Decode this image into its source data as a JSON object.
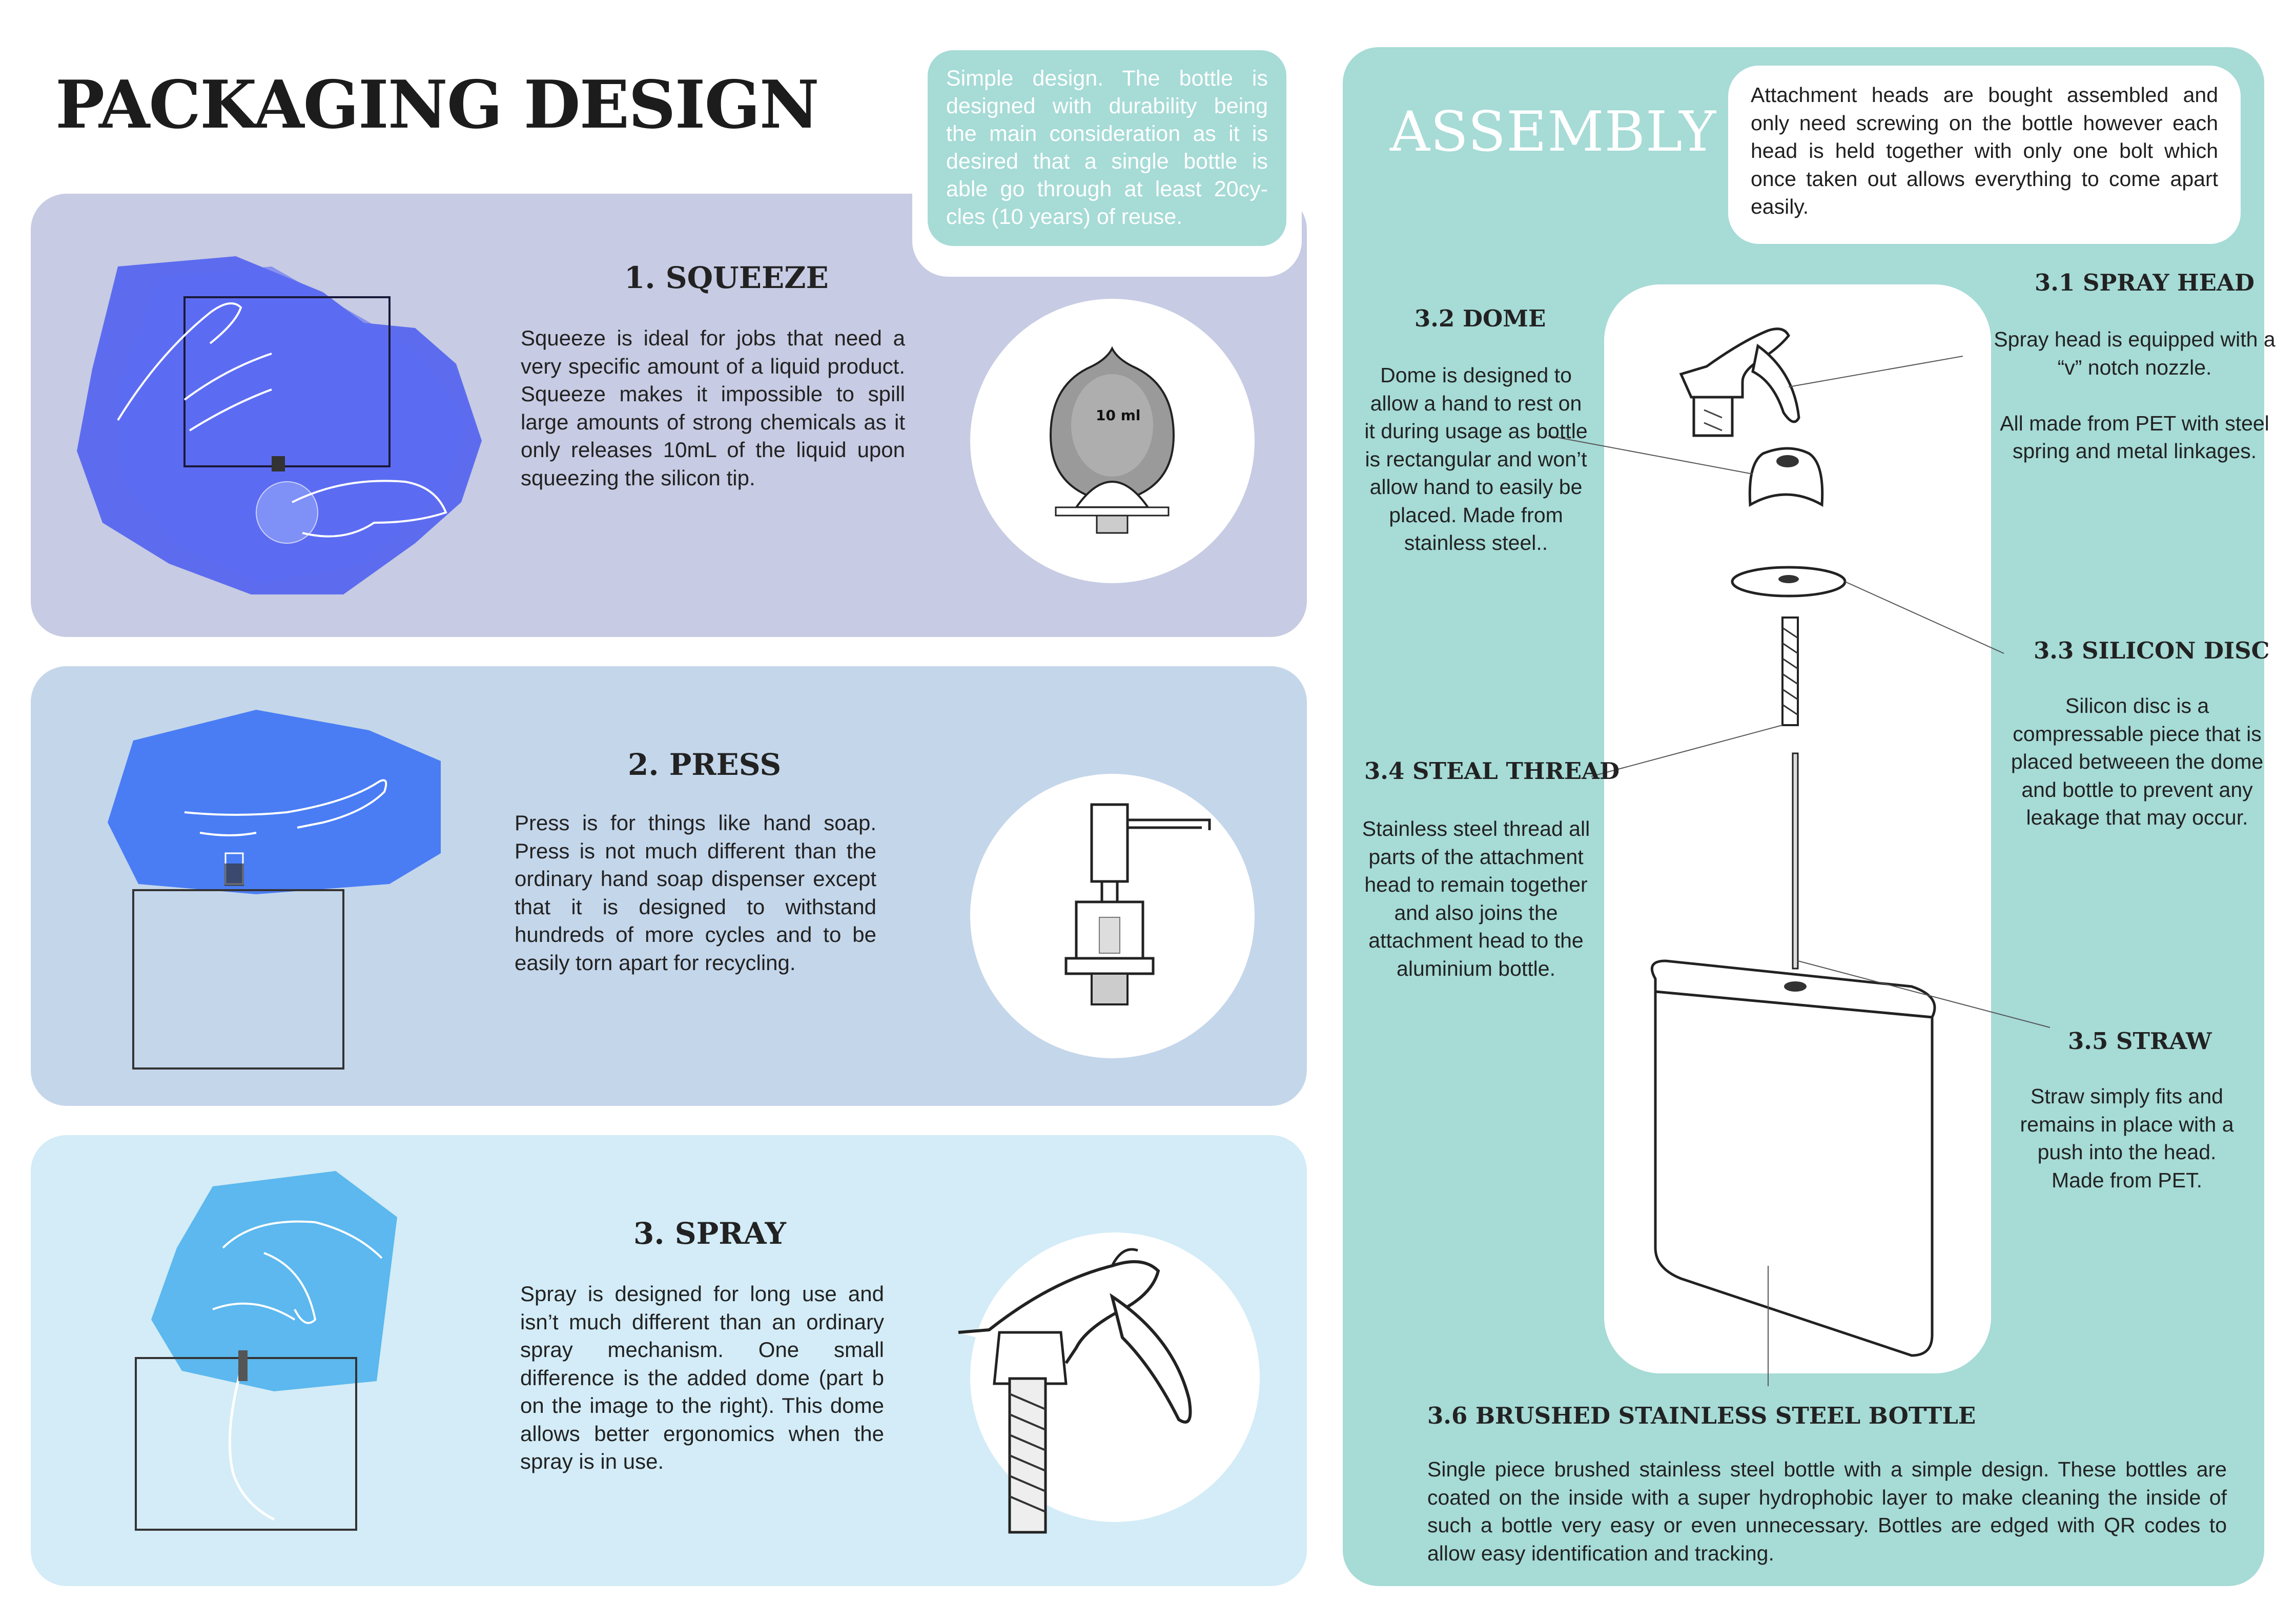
{
  "page": {
    "title": "PACKAGING DESIGN"
  },
  "intro_note": "Simple design. The bottle is designed with durability being the main consideration as it is desired that a single bottle is able go through at least 20cy-cles (10 years) of reuse.",
  "sections": [
    {
      "title": "1. SQUEEZE",
      "text": "Squeeze is ideal for jobs that need a very specific amount of a liquid product. Squeeze makes it impossible to spill large amounts of strong chemicals as it only releases 10mL of the liquid upon squeezing the silicon tip.",
      "bulb_label": "10 ml"
    },
    {
      "title": "2. PRESS",
      "text": "Press is for things like hand soap. Press is not much different than the ordinary hand soap dispenser except that it is designed to withstand hundreds of more cycles and to be easily torn apart for recycling."
    },
    {
      "title": "3. SPRAY",
      "text": "Spray is designed for long use and isn’t much different than an ordinary spray mechanism. One small difference is the added dome (part b on the image to the right). This dome allows better ergonomics when the spray is in use."
    }
  ],
  "assembly": {
    "title": "ASSEMBLY",
    "note": "Attachment heads are bought assembled and only need screwing on the bottle however each head is held together with only one bolt which once taken out allows everything to come apart easily.",
    "parts": [
      {
        "label": "3.1  SPRAY HEAD",
        "text": "Spray head is equipped with a “v” notch nozzle.\n\nAll made from PET with steel spring and metal linkages."
      },
      {
        "label": "3.2  DOME",
        "text": "Dome is designed to allow a hand to rest on it during usage as bottle is rectangular and won’t allow hand to easily be placed. Made from stainless steel.."
      },
      {
        "label": "3.3 SILICON DISC",
        "text": "Silicon disc is a compressable piece that is placed betweeen the dome and bottle to prevent any leakage that may occur."
      },
      {
        "label": "3.4 STEAL THREAD",
        "text": "Stainless steel thread all parts of the attachment head to remain together and also joins the attachment head to the aluminium bottle."
      },
      {
        "label": "3.5 STRAW",
        "text": "Straw simply fits and remains in place with a push into the head. Made from PET."
      },
      {
        "label": "3.6 BRUSHED STAINLESS STEEL  BOTTLE",
        "text": "Single piece brushed stainless steel bottle with a simple design. These bottles are coated on the inside with a super hydrophobic layer to make cleaning the inside of such a bottle very easy or even unnecessary. Bottles are edged with QR codes to allow easy identification and tracking."
      }
    ]
  },
  "colors": {
    "squeeze_panel": "#c7cbe3",
    "press_panel": "#c4d6ea",
    "spray_panel": "#d3ecf7",
    "assembly_panel": "#a6dbd6",
    "accent_blue": "#4a5cf0"
  }
}
